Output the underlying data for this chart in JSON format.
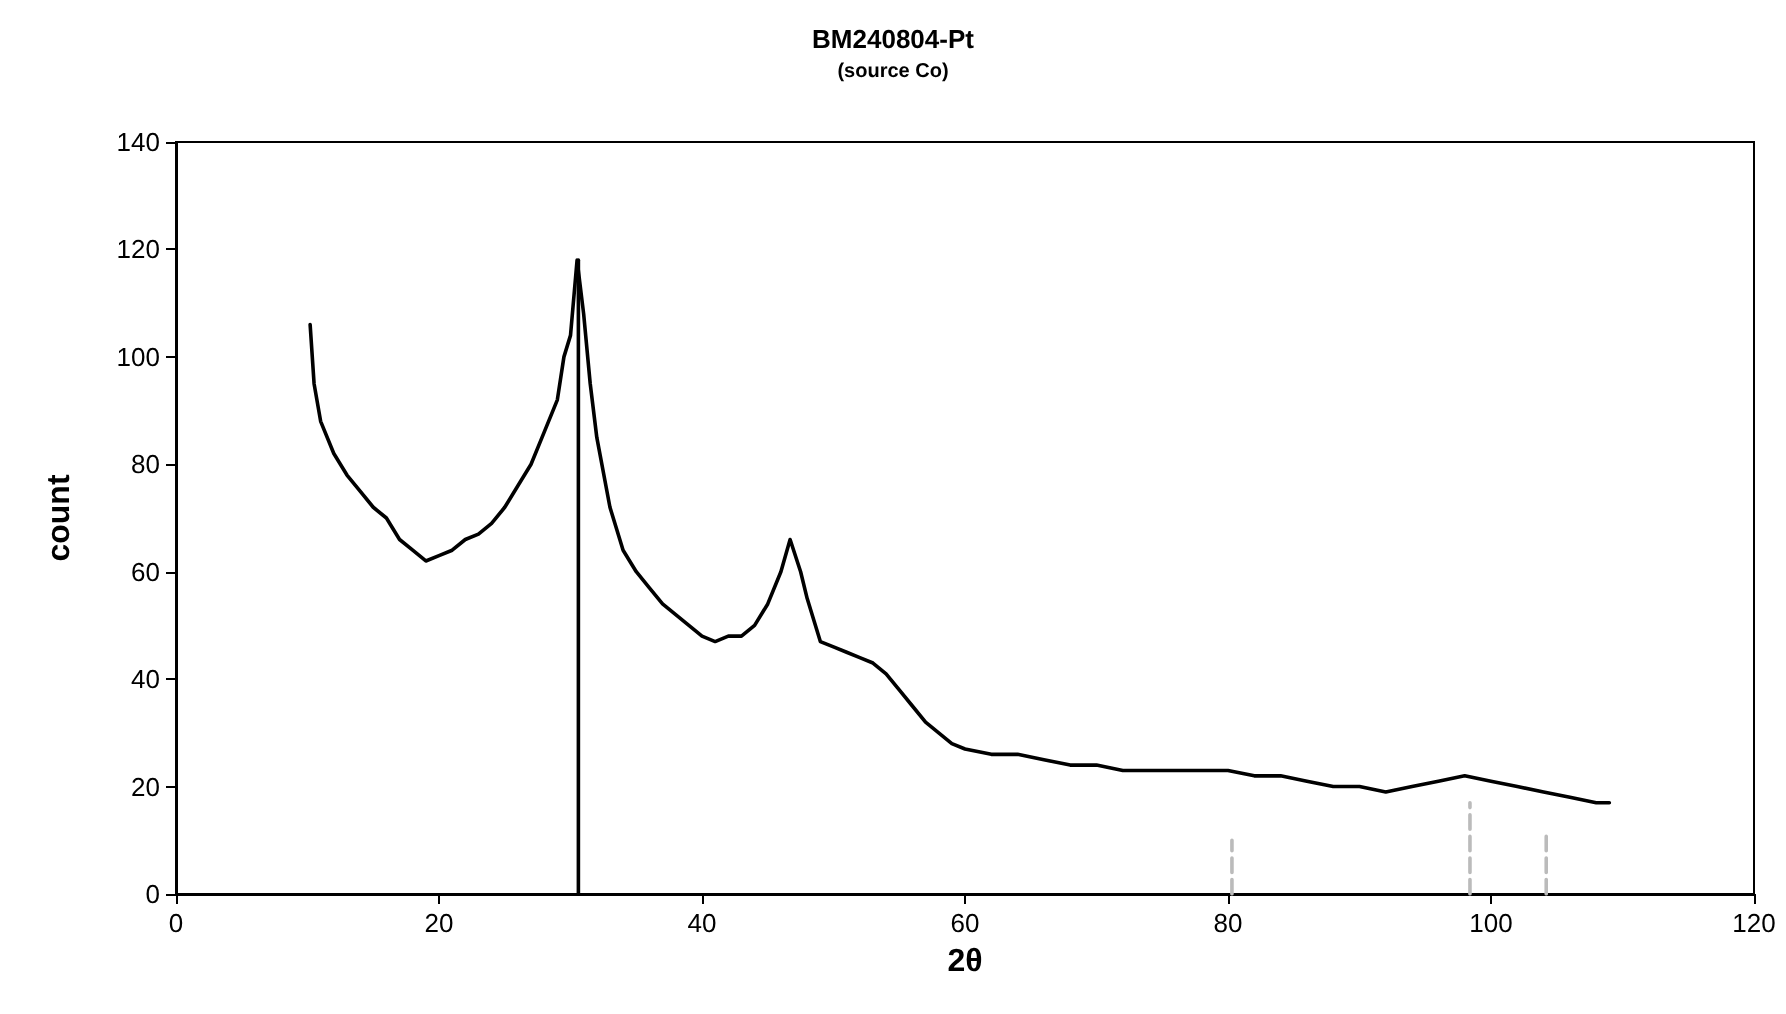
{
  "chart_data": {
    "type": "line",
    "title": "BM240804-Pt",
    "subtitle": "(source Co)",
    "xlabel": "2θ",
    "ylabel": "count",
    "xlim": [
      0,
      120
    ],
    "xticks": [
      0,
      20,
      40,
      60,
      80,
      100,
      120
    ],
    "ylim": [
      0,
      140
    ],
    "yticks": [
      0,
      20,
      40,
      60,
      80,
      100,
      120,
      140
    ],
    "grid": false,
    "marker": "none",
    "series": [
      {
        "color": "#000000",
        "line_style": "solid",
        "x": [
          10.2,
          10.5,
          11,
          12,
          13,
          14,
          15,
          16,
          17,
          18,
          19,
          20,
          21,
          22,
          23,
          24,
          25,
          26,
          27,
          28,
          29,
          29.5,
          30,
          30.5,
          31,
          31.5,
          32,
          33,
          34,
          35,
          36,
          37,
          38,
          39,
          40,
          41,
          42,
          43,
          44,
          45,
          46,
          46.7,
          47.5,
          48,
          49,
          50,
          51,
          52,
          53,
          54,
          55,
          56,
          57,
          58,
          59,
          60,
          62,
          64,
          66,
          68,
          70,
          72,
          74,
          76,
          78,
          80,
          82,
          84,
          86,
          88,
          90,
          92,
          94,
          96,
          98,
          100,
          102,
          104,
          106,
          108,
          109
        ],
        "values": [
          106,
          95,
          88,
          82,
          78,
          75,
          72,
          70,
          66,
          64,
          62,
          63,
          64,
          66,
          67,
          69,
          72,
          76,
          80,
          86,
          92,
          100,
          104,
          118,
          108,
          95,
          85,
          72,
          64,
          60,
          57,
          54,
          52,
          50,
          48,
          47,
          48,
          48,
          50,
          54,
          60,
          66,
          60,
          55,
          47,
          46,
          45,
          44,
          43,
          41,
          38,
          35,
          32,
          30,
          28,
          27,
          26,
          26,
          25,
          24,
          24,
          23,
          23,
          23,
          23,
          23,
          22,
          22,
          21,
          20,
          20,
          19,
          20,
          21,
          22,
          21,
          20,
          19,
          18,
          17,
          17
        ]
      },
      {
        "color": "#000000",
        "line_style": "solid",
        "x": [
          30.6,
          30.6
        ],
        "values": [
          0,
          118
        ]
      },
      {
        "color": "#bbbbbb",
        "line_style": "dashed",
        "x": [
          80.3,
          80.3
        ],
        "values": [
          0,
          10
        ]
      },
      {
        "color": "#bbbbbb",
        "line_style": "dashed",
        "x": [
          98.4,
          98.4
        ],
        "values": [
          0,
          17
        ]
      },
      {
        "color": "#bbbbbb",
        "line_style": "dashed",
        "x": [
          104.2,
          104.2
        ],
        "values": [
          0,
          12
        ]
      }
    ]
  }
}
